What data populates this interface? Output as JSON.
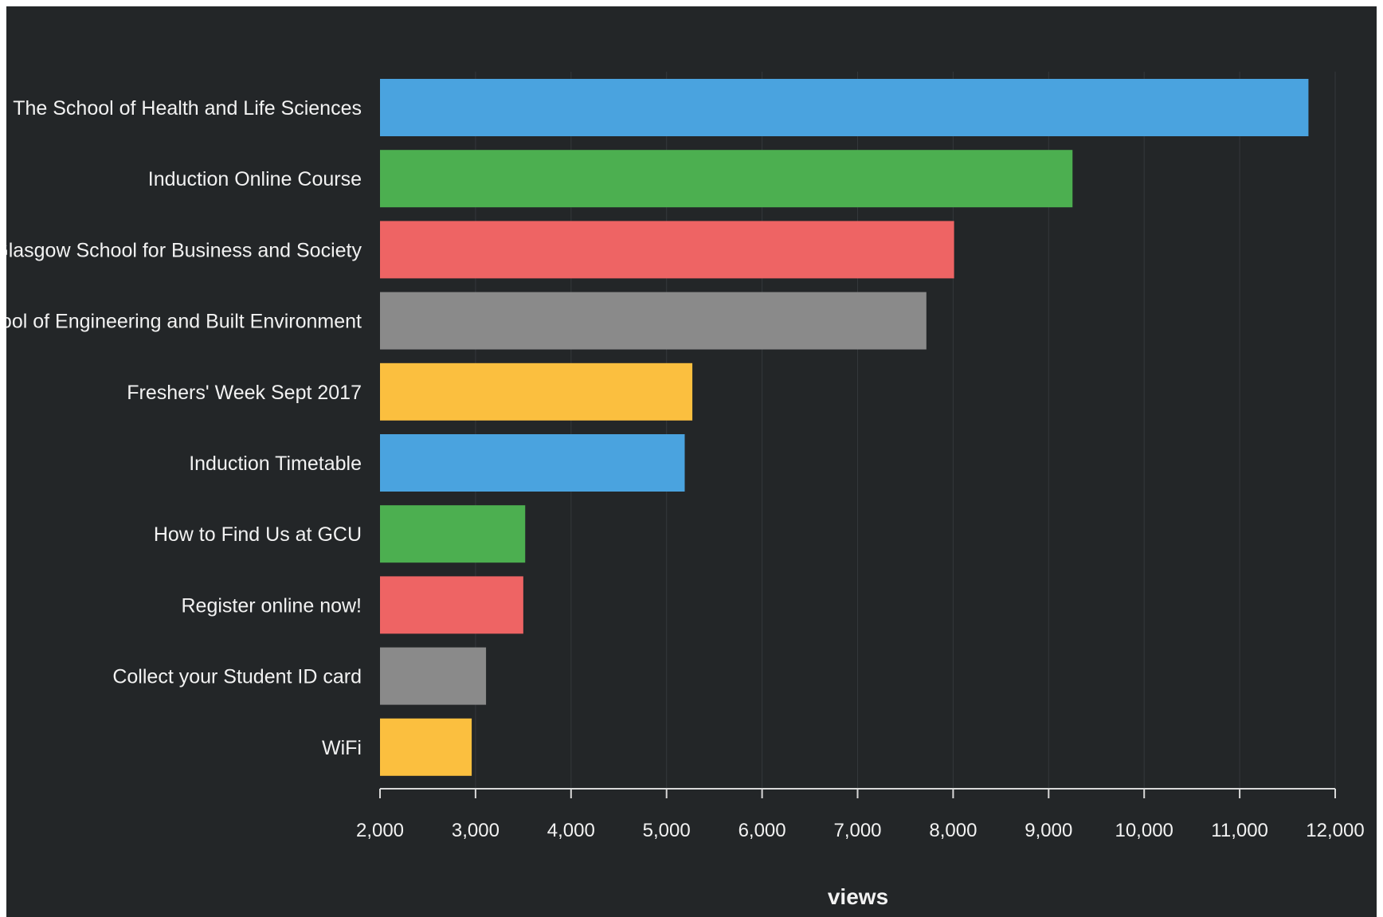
{
  "chart_data": {
    "type": "bar",
    "orientation": "horizontal",
    "categories": [
      "The School of Health and Life Sciences",
      "Induction Online Course",
      "Glasgow School for Business and Society",
      "The School of Engineering and Built Environment",
      "Freshers' Week Sept 2017",
      "Induction Timetable",
      "How to Find Us at GCU",
      "Register online now!",
      "Collect your Student ID card",
      "WiFi"
    ],
    "values": [
      11720,
      9250,
      8010,
      7720,
      5270,
      5190,
      3520,
      3500,
      3110,
      2960
    ],
    "colors": [
      "#4aa3df",
      "#4caf50",
      "#ee6464",
      "#8a8a8a",
      "#fbbf3f",
      "#4aa3df",
      "#4caf50",
      "#ee6464",
      "#8a8a8a",
      "#fbbf3f"
    ],
    "xlabel": "views",
    "xlim": [
      2000,
      12000
    ],
    "xticks": [
      2000,
      3000,
      4000,
      5000,
      6000,
      7000,
      8000,
      9000,
      10000,
      11000,
      12000
    ],
    "xtick_labels": [
      "2,000",
      "3,000",
      "4,000",
      "5,000",
      "6,000",
      "7,000",
      "8,000",
      "9,000",
      "10,000",
      "11,000",
      "12,000"
    ],
    "grid": "vertical",
    "background": "#232628"
  }
}
